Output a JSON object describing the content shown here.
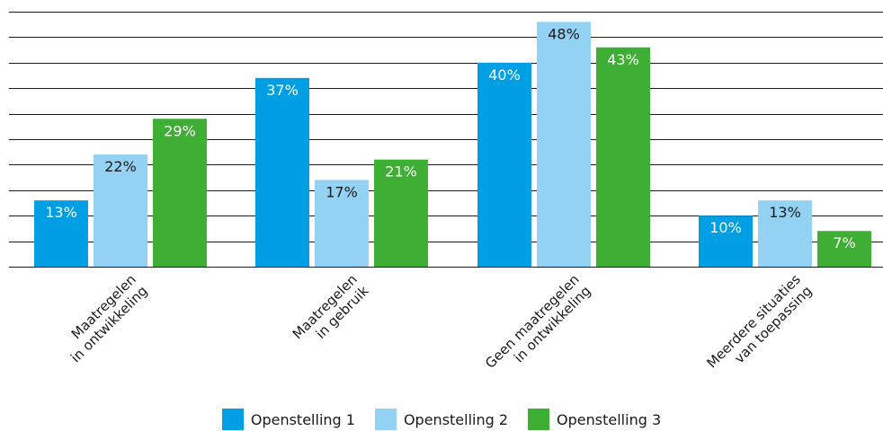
{
  "chart_data": {
    "type": "bar",
    "categories": [
      [
        "Maatregelen",
        "in ontwikkeling"
      ],
      [
        "Maatregelen",
        "in gebruik"
      ],
      [
        "Geen maatregelen",
        "in ontwikkeling"
      ],
      [
        "Meerdere situaties",
        "van toepassing"
      ]
    ],
    "series": [
      {
        "name": "Openstelling 1",
        "color": "#009fe3",
        "values": [
          13,
          37,
          40,
          10
        ],
        "labels": [
          "13%",
          "37%",
          "40%",
          "10%"
        ]
      },
      {
        "name": "Openstelling 2",
        "color": "#94d2f4",
        "values": [
          22,
          17,
          48,
          13
        ],
        "labels": [
          "22%",
          "17%",
          "48%",
          "13%"
        ]
      },
      {
        "name": "Openstelling 3",
        "color": "#3fae34",
        "values": [
          29,
          21,
          43,
          7
        ],
        "labels": [
          "29%",
          "21%",
          "43%",
          "7%"
        ]
      }
    ],
    "ylim": [
      0,
      50
    ],
    "grid_step": 5,
    "grid": true,
    "legend_position": "bottom",
    "label_color_on_dark": "#ffffff",
    "label_color_on_light": "#1a1a1a"
  }
}
